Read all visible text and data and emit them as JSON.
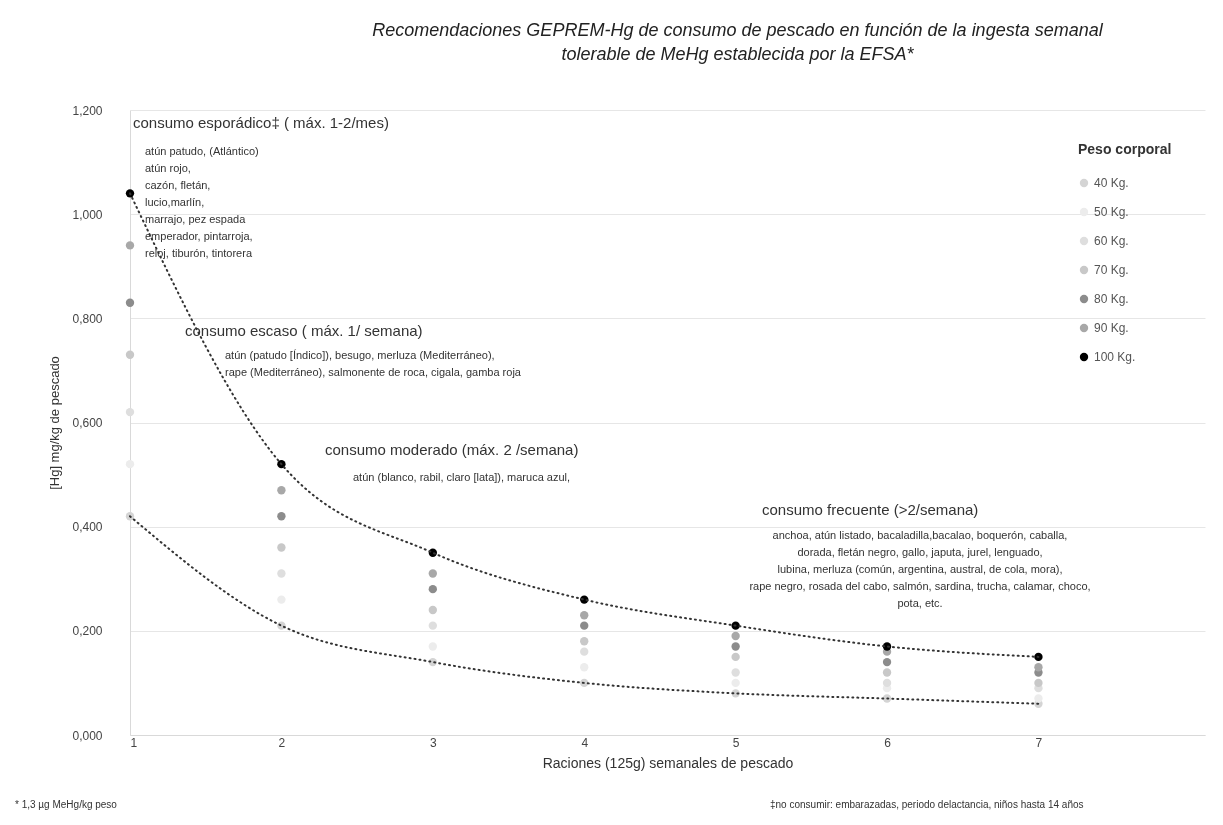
{
  "chart_data": {
    "type": "scatter",
    "title": "Recomendaciones GEPREM-Hg de consumo de pescado en función de la ingesta semanal\ntolerable de MeHg establecida por la EFSA*",
    "xlabel": "Raciones (125g) semanales de pescado",
    "ylabel": "[Hg] mg/kg de pescado",
    "legend_title": "Peso corporal",
    "legend": "top right",
    "grid": "y",
    "marker": "circle",
    "x": [
      1,
      2,
      3,
      4,
      5,
      6,
      7
    ],
    "xlim": [
      1,
      8.1
    ],
    "xticks": [
      1,
      2,
      3,
      4,
      5,
      6,
      7
    ],
    "ylim": [
      0,
      1.2
    ],
    "yticks": [
      {
        "value": 0,
        "label": "0,000"
      },
      {
        "value": 0.2,
        "label": "0,200"
      },
      {
        "value": 0.4,
        "label": "0,400"
      },
      {
        "value": 0.6,
        "label": "0,600"
      },
      {
        "value": 0.8,
        "label": "0,800"
      },
      {
        "value": 1,
        "label": "1,000"
      },
      {
        "value": 1.2,
        "label": "1,200"
      }
    ],
    "series": [
      {
        "name": "40 Kg.",
        "color": "#d4d4d4",
        "values": [
          0.42,
          0.21,
          0.14,
          0.1,
          0.08,
          0.07,
          0.06
        ]
      },
      {
        "name": "50 Kg.",
        "color": "#ececec",
        "values": [
          0.52,
          0.26,
          0.17,
          0.13,
          0.1,
          0.09,
          0.07
        ]
      },
      {
        "name": "60 Kg.",
        "color": "#dedede",
        "values": [
          0.62,
          0.31,
          0.21,
          0.16,
          0.12,
          0.1,
          0.09
        ]
      },
      {
        "name": "70 Kg.",
        "color": "#c8c8c8",
        "values": [
          0.73,
          0.36,
          0.24,
          0.18,
          0.15,
          0.12,
          0.1
        ]
      },
      {
        "name": "80 Kg.",
        "color": "#8c8c8c",
        "values": [
          0.83,
          0.42,
          0.28,
          0.21,
          0.17,
          0.14,
          0.12
        ]
      },
      {
        "name": "90 Kg.",
        "color": "#a8a8a8",
        "values": [
          0.94,
          0.47,
          0.31,
          0.23,
          0.19,
          0.16,
          0.13
        ]
      },
      {
        "name": "100 Kg.",
        "color": "#000000",
        "values": [
          1.04,
          0.52,
          0.35,
          0.26,
          0.21,
          0.17,
          0.15
        ]
      },
      {
        "type": "line",
        "color": "#333333",
        "line_style": "dotted",
        "marker": "none",
        "x": [
          1,
          2,
          3,
          4,
          5,
          6,
          7
        ],
        "values": [
          1.04,
          0.52,
          0.35,
          0.26,
          0.21,
          0.17,
          0.15
        ]
      },
      {
        "type": "line",
        "color": "#333333",
        "line_style": "dotted",
        "marker": "none",
        "x": [
          1,
          2,
          3,
          4,
          5,
          6,
          7
        ],
        "values": [
          0.42,
          0.21,
          0.14,
          0.1,
          0.08,
          0.07,
          0.06
        ]
      }
    ],
    "annotations": [
      "consumo esporádico‡ ( máx. 1-2/mes)",
      "atún patudo, (Atlántico)\natún rojo,\ncazón, fletán,\nlucio,marlín,\nmarrajo, pez espada\nemperador, pintarroja,\nreloj, tiburón, tintorera",
      "consumo escaso ( máx. 1/ semana)",
      "atún (patudo  [Índico]),  besugo, merluza (Mediterráneo),\nrape (Mediterráneo), salmonente de roca, cigala, gamba roja",
      "consumo moderado (máx. 2 /semana)",
      "atún (blanco, rabil, claro [lata]), maruca azul,",
      "consumo frecuente (>2/semana)",
      "anchoa, atún listado, bacaladilla,bacalao, boquerón, caballa,\ndorada, fletán negro, gallo, japuta, jurel, lenguado,\nlubina, merluza (común, argentina, austral, de cola, mora),\nrape negro, rosada del cabo, salmón, sardina, trucha, calamar, choco,\npota, etc.",
      "* 1,3 µg MeHg/kg peso",
      "‡no consumir: embarazadas, periodo delactancia, niños hasta 14 años"
    ]
  }
}
